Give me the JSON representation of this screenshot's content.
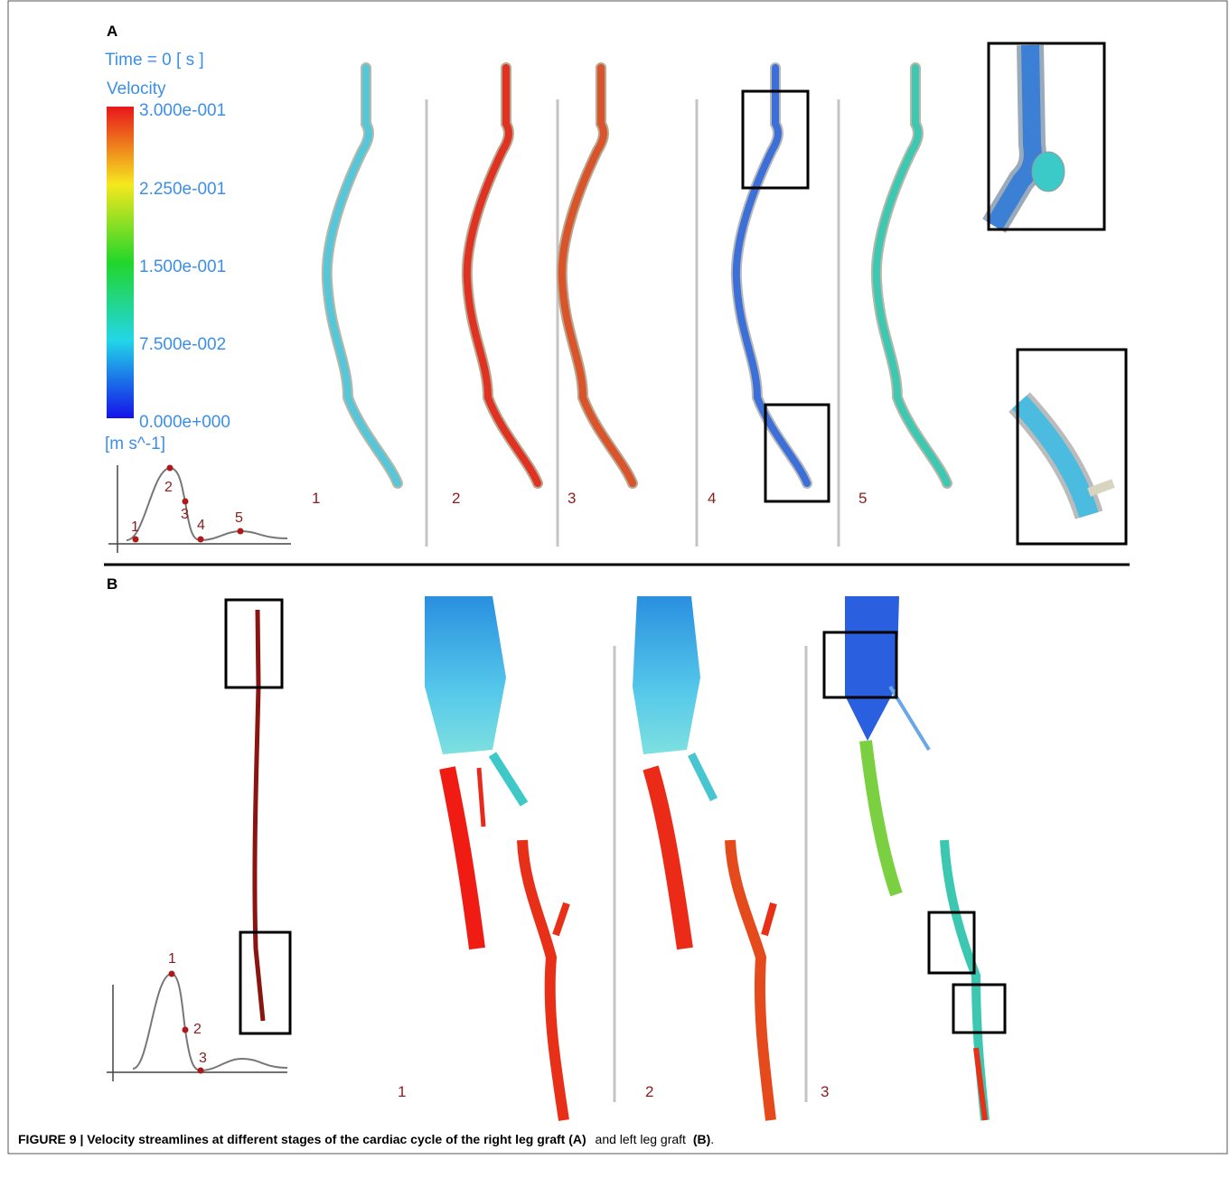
{
  "panel_a": {
    "label": "A",
    "time": "Time = 0 [ s ]",
    "colorbar": {
      "title": "Velocity",
      "ticks": [
        "3.000e-001",
        "2.250e-001",
        "1.500e-001",
        "7.500e-002",
        "0.000e+000"
      ],
      "unit": "[m s^-1]"
    },
    "waveform_points": [
      "1",
      "2",
      "3",
      "4",
      "5"
    ],
    "frame_labels": [
      "1",
      "2",
      "3",
      "4",
      "5"
    ]
  },
  "panel_b": {
    "label": "B",
    "waveform_points": [
      "1",
      "2",
      "3"
    ],
    "frame_labels": [
      "1",
      "2",
      "3"
    ]
  },
  "caption": {
    "bold": "FIGURE 9 | Velocity streamlines at different stages of the cardiac cycle of the right leg graft (A)",
    "text": "and left leg graft",
    "bold_end": "(B)",
    "end": "."
  }
}
